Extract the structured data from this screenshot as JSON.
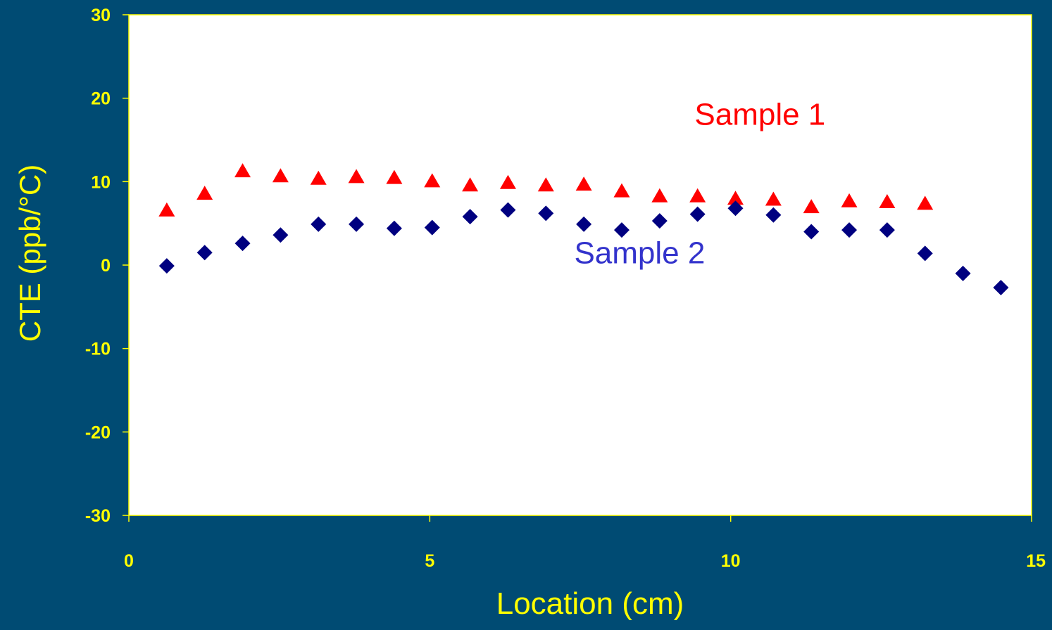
{
  "chart_data": {
    "type": "scatter",
    "title": "",
    "xlabel": "Location (cm)",
    "ylabel": "CTE (ppb/°C)",
    "xlim": [
      0,
      15
    ],
    "ylim": [
      -30,
      30
    ],
    "x_ticks": [
      0,
      5,
      10,
      15
    ],
    "y_ticks": [
      -30,
      -20,
      -10,
      0,
      10,
      20,
      30
    ],
    "grid": false,
    "legend": "none",
    "series": [
      {
        "name": "Sample 1",
        "marker": "triangle",
        "color": "#ff0000",
        "x": [
          0.63,
          1.26,
          1.89,
          2.52,
          3.15,
          3.78,
          4.41,
          5.04,
          5.67,
          6.3,
          6.93,
          7.56,
          8.19,
          8.82,
          9.45,
          10.08,
          10.71,
          11.34,
          11.97,
          12.6,
          13.23
        ],
        "y": [
          6.5,
          8.5,
          11.2,
          10.6,
          10.3,
          10.5,
          10.4,
          10.0,
          9.5,
          9.8,
          9.5,
          9.6,
          8.8,
          8.2,
          8.2,
          7.9,
          7.8,
          6.9,
          7.6,
          7.5,
          7.3
        ]
      },
      {
        "name": "Sample 2",
        "marker": "diamond",
        "color": "#000080",
        "x": [
          0.63,
          1.26,
          1.89,
          2.52,
          3.15,
          3.78,
          4.41,
          5.04,
          5.67,
          6.3,
          6.93,
          7.56,
          8.19,
          8.82,
          9.45,
          10.08,
          10.71,
          11.34,
          11.97,
          12.6,
          13.23,
          13.86,
          14.49
        ],
        "y": [
          -0.1,
          1.5,
          2.6,
          3.6,
          4.9,
          4.9,
          4.4,
          4.5,
          5.8,
          6.6,
          6.2,
          4.9,
          4.2,
          5.3,
          6.1,
          6.8,
          6.0,
          4.0,
          4.2,
          4.2,
          1.4,
          -1.0,
          -2.7
        ]
      }
    ],
    "annotations": [
      {
        "text": "Sample 1",
        "color": "#ff0000",
        "x": 9.4,
        "y": 16.8
      },
      {
        "text": "Sample 2",
        "color": "#3333cc",
        "x": 7.4,
        "y": 0.2
      }
    ]
  }
}
